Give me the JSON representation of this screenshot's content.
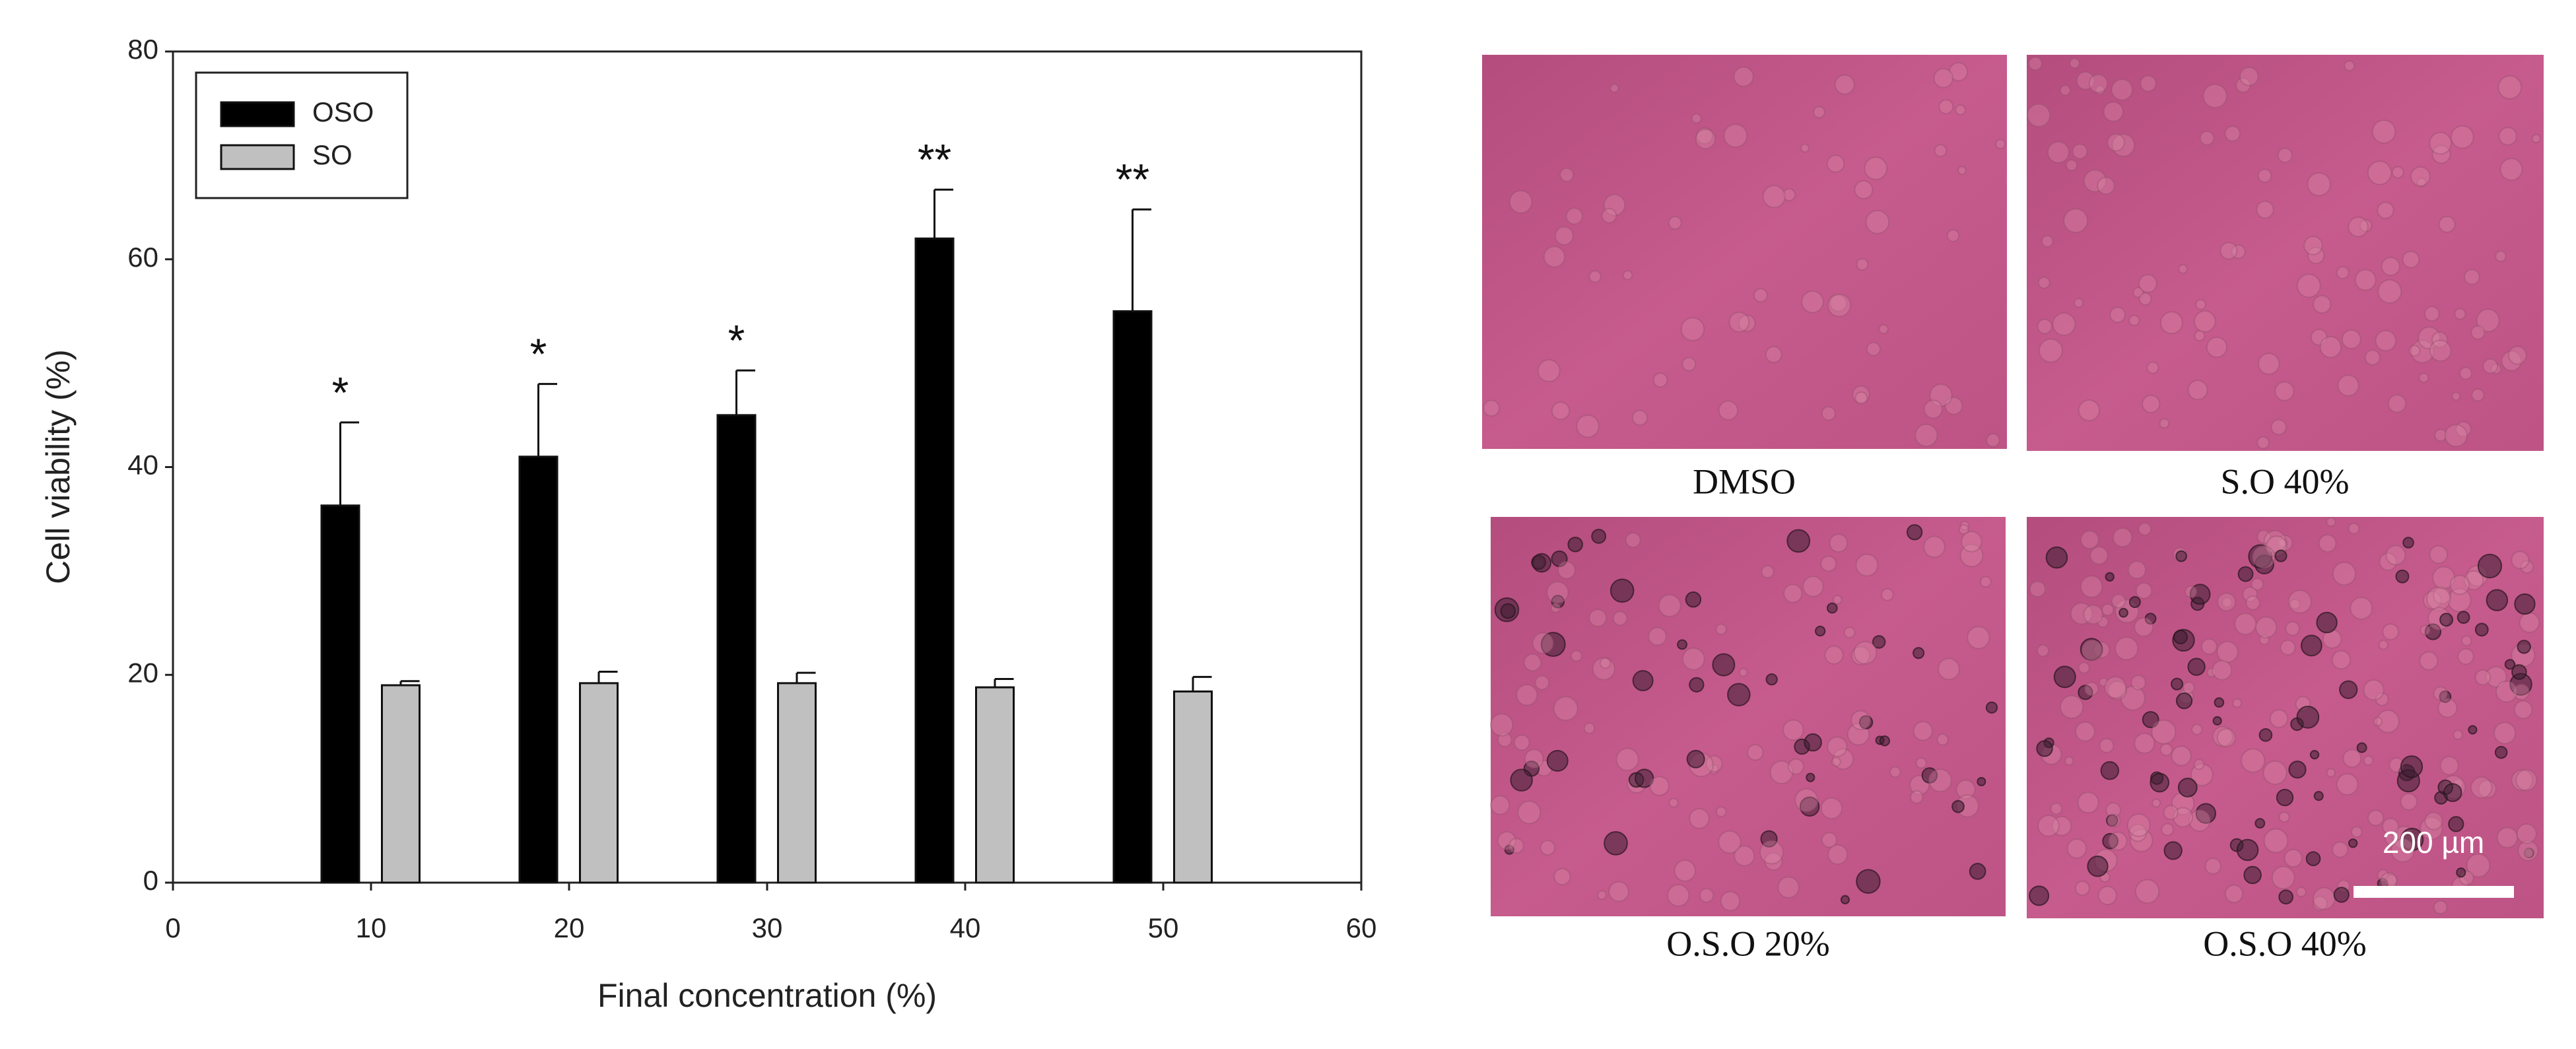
{
  "chart_data": {
    "type": "bar",
    "xlabel": "Final concentration (%)",
    "ylabel": "Cell viability (%)",
    "x": [
      10,
      20,
      30,
      40,
      50
    ],
    "series": [
      {
        "name": "OSO",
        "color": "#000000",
        "values": [
          36.3,
          41,
          45,
          62,
          55
        ],
        "errors": [
          8,
          7,
          4.3,
          4.7,
          9.8
        ]
      },
      {
        "name": "SO",
        "color": "#c0c0c0",
        "values": [
          19,
          19.2,
          19.2,
          18.8,
          18.4
        ],
        "errors": [
          0.4,
          1.1,
          1,
          0.8,
          1.4
        ]
      }
    ],
    "annotations": [
      "*",
      "*",
      "*",
      "**",
      "**"
    ],
    "xlim": [
      0,
      60
    ],
    "xticks": [
      0,
      10,
      20,
      30,
      40,
      50,
      60
    ],
    "ylim": [
      0,
      80
    ],
    "yticks": [
      0,
      20,
      40,
      60,
      80
    ],
    "grid": false,
    "legend": "upper left"
  },
  "panels": [
    {
      "label": "DMSO"
    },
    {
      "label": "S.O 40%"
    },
    {
      "label": "O.S.O 20%"
    },
    {
      "label": "O.S.O 40%"
    }
  ],
  "scale_bar": "200 µm"
}
